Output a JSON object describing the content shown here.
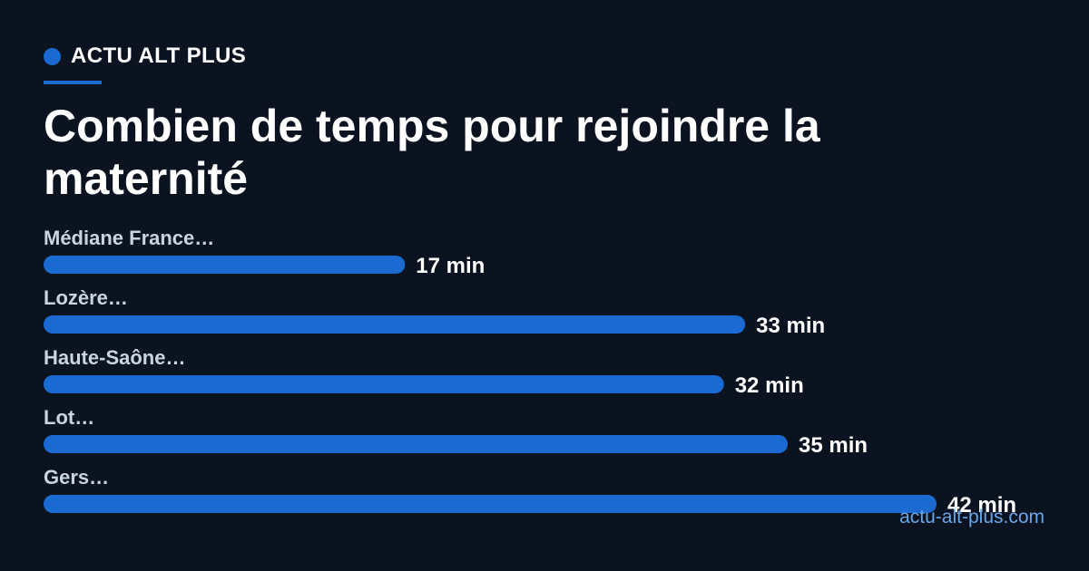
{
  "brand": {
    "name": "ACTU ALT PLUS"
  },
  "colors": {
    "background": "#0b1220",
    "accent": "#1a6ad1",
    "category_text": "#c9d4e3",
    "value_text": "#ffffff",
    "footer_text": "#6aa6e6"
  },
  "footer": {
    "site": "actu-alt-plus.com"
  },
  "chart_data": {
    "type": "bar",
    "orientation": "horizontal",
    "title": "Combien de temps pour rejoindre la maternité",
    "categories": [
      "Médiane France…",
      "Lozère…",
      "Haute-Saône…",
      "Lot…",
      "Gers…"
    ],
    "values": [
      17,
      33,
      32,
      35,
      42
    ],
    "value_labels": [
      "17 min",
      "33 min",
      "32 min",
      "35 min",
      "42 min"
    ],
    "unit": "min",
    "xlim": [
      0,
      42
    ],
    "grid": false,
    "legend": "none"
  }
}
